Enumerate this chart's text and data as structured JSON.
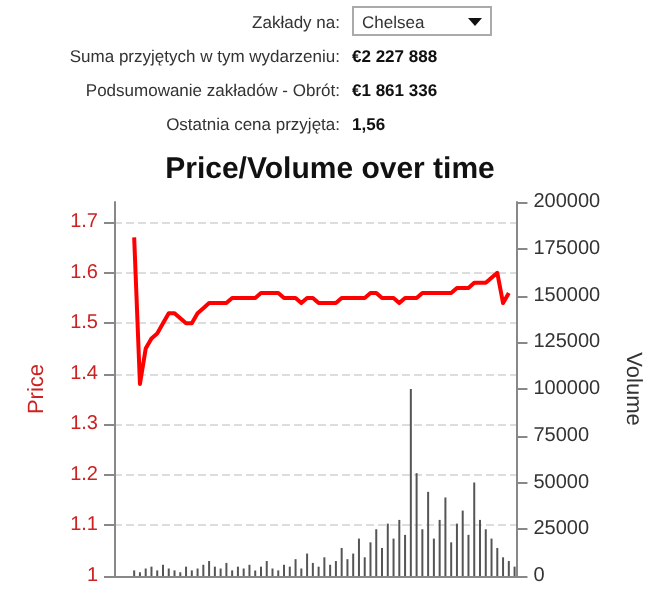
{
  "chart_data": {
    "type": "bar",
    "title": "Price/Volume over time",
    "ylabel": "Price",
    "y2label": "Volume",
    "annotations": [
      "Zakłady na:",
      "Chelsea",
      "Suma przyjętych w tym wydarzeniu:",
      "€2 227 888",
      "Podsumowanie zakładów - Obrót:",
      "€1 861 336",
      "Ostatnia cena przyjęta:",
      "1,56"
    ],
    "categories": [
      null,
      null,
      null,
      null,
      null,
      null,
      null,
      null,
      null,
      null,
      null,
      null,
      null,
      null,
      null,
      null,
      null,
      null,
      null,
      null,
      null,
      null,
      null,
      null,
      null,
      null,
      null,
      null,
      null,
      null,
      null,
      null,
      null,
      null,
      null,
      null,
      null,
      null,
      null,
      null,
      null,
      null,
      null,
      null,
      null,
      null,
      null,
      null,
      null,
      null,
      null,
      null,
      null,
      null,
      null,
      null,
      null,
      null,
      null,
      null,
      null,
      null,
      null,
      null,
      null,
      null,
      null,
      null,
      null,
      null
    ],
    "series": [
      {
        "type": "line",
        "color": "#ff0000",
        "values": [
          null,
          null,
          null,
          1.67,
          1.38,
          1.45,
          1.47,
          1.48,
          1.5,
          1.52,
          1.52,
          1.51,
          1.5,
          1.5,
          1.52,
          1.53,
          1.54,
          1.54,
          1.54,
          1.54,
          1.55,
          1.55,
          1.55,
          1.55,
          1.55,
          1.56,
          1.56,
          1.56,
          1.56,
          1.55,
          1.55,
          1.55,
          1.54,
          1.55,
          1.55,
          1.54,
          1.54,
          1.54,
          1.54,
          1.55,
          1.55,
          1.55,
          1.55,
          1.55,
          1.56,
          1.56,
          1.55,
          1.55,
          1.55,
          1.54,
          1.55,
          1.55,
          1.55,
          1.56,
          1.56,
          1.56,
          1.56,
          1.56,
          1.56,
          1.57,
          1.57,
          1.57,
          1.58,
          1.58,
          1.58,
          1.59,
          1.6,
          1.54,
          1.56,
          null
        ]
      },
      {
        "axis": "y2",
        "color": "#555555",
        "values": [
          0,
          0,
          0,
          3000,
          2000,
          4000,
          5000,
          3000,
          6000,
          4000,
          3000,
          2000,
          5000,
          3000,
          4000,
          6000,
          8000,
          5000,
          4000,
          7000,
          3000,
          5000,
          4000,
          6000,
          3000,
          5000,
          8000,
          4000,
          3000,
          6000,
          5000,
          9000,
          4000,
          12000,
          7000,
          5000,
          10000,
          6000,
          8000,
          15000,
          9000,
          12000,
          20000,
          10000,
          18000,
          25000,
          15000,
          28000,
          20000,
          30000,
          22000,
          100000,
          55000,
          25000,
          45000,
          20000,
          30000,
          42000,
          18000,
          28000,
          35000,
          22000,
          50000,
          30000,
          25000,
          20000,
          15000,
          10000,
          8000,
          5000
        ]
      }
    ],
    "ylim": [
      1.0,
      1.74
    ],
    "yticks": [
      1.0,
      1.1,
      1.2,
      1.3,
      1.4,
      1.5,
      1.6,
      1.7
    ],
    "y2lim": [
      0,
      200000
    ],
    "y2ticks": [
      0,
      25000,
      50000,
      75000,
      100000,
      125000,
      150000,
      175000,
      200000
    ],
    "grid": "y",
    "marker": "none"
  }
}
